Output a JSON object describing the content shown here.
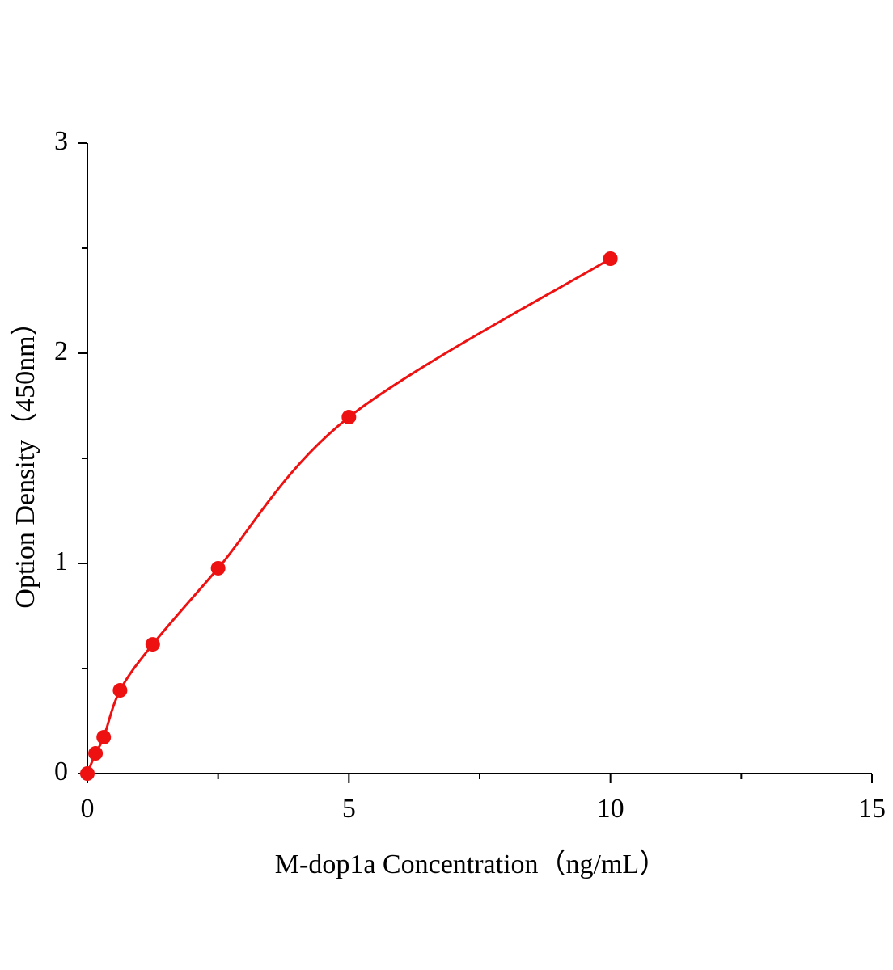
{
  "chart_data": {
    "type": "scatter",
    "xlabel": "M-dop1a Concentration（ng/mL）",
    "ylabel": "Option Density（450nm）",
    "x": [
      0,
      0.156,
      0.3125,
      0.625,
      1.25,
      2.5,
      5,
      10
    ],
    "series": [
      {
        "color": "#ee1111",
        "values": [
          0,
          0.096,
          0.173,
          0.396,
          0.615,
          0.977,
          1.696,
          2.45
        ]
      }
    ],
    "fit_line": true,
    "xlim": [
      0,
      15
    ],
    "xticks": [
      0,
      5,
      10,
      15
    ],
    "xminor_ticks": [
      2.5,
      7.5,
      12.5
    ],
    "ylim": [
      0,
      3
    ],
    "yticks": [
      0,
      1,
      2,
      3
    ],
    "yminor_ticks": [
      0.5,
      1.5,
      2.5
    ]
  }
}
